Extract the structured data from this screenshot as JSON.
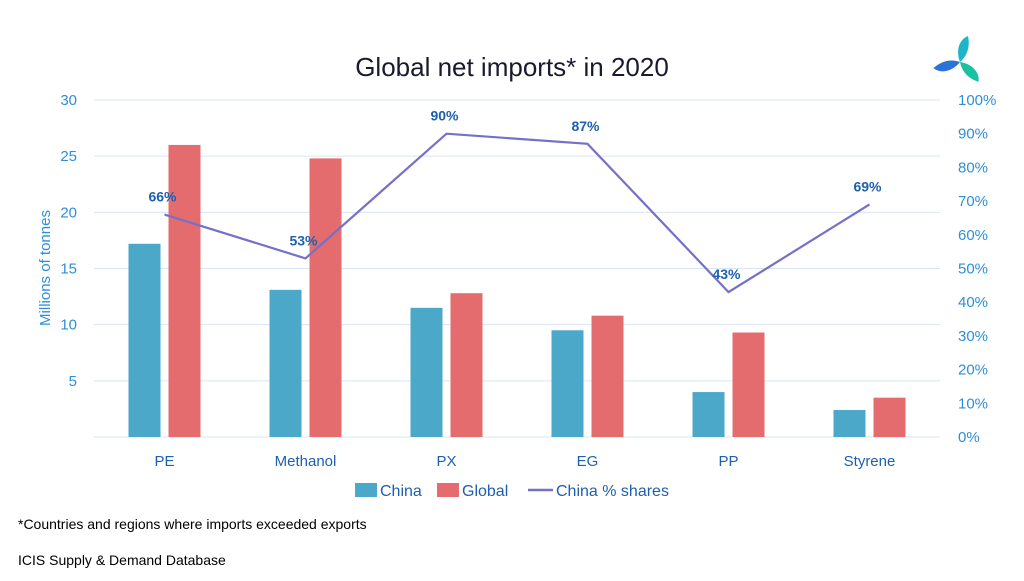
{
  "brand": {
    "logo_icon": "icis-propeller-logo-icon",
    "logo_colors": [
      "#1fb5c8",
      "#19c1a3",
      "#2a73d9"
    ]
  },
  "footnote": "*Countries and regions where imports exceeded exports",
  "source": "ICIS Supply & Demand Database",
  "chart_data": {
    "type": "bar",
    "title": "Global net imports* in 2020",
    "xlabel": "",
    "ylabel": "Millions of tonnes",
    "y2label": "",
    "categories": [
      "PE",
      "Methanol",
      "PX",
      "EG",
      "PP",
      "Styrene"
    ],
    "ylim": [
      0,
      30
    ],
    "yticks": [
      5,
      10,
      15,
      20,
      25,
      30
    ],
    "y2lim": [
      0,
      100
    ],
    "y2ticks": [
      0,
      10,
      20,
      30,
      40,
      50,
      60,
      70,
      80,
      90,
      100
    ],
    "y2tick_suffix": "%",
    "grid": true,
    "legend_position": "bottom",
    "colors": {
      "china": "#4ba8c8",
      "global": "#e46c6e",
      "line": "#7570c8",
      "axis_text": "#2e8fd6",
      "label_text": "#1f5fae",
      "grid": "#d9e5f2",
      "title": "#1a1a2e"
    },
    "series": [
      {
        "name": "China",
        "kind": "bar",
        "axis": "left",
        "values": [
          17.2,
          13.1,
          11.5,
          9.5,
          4.0,
          2.4
        ]
      },
      {
        "name": "Global",
        "kind": "bar",
        "axis": "left",
        "values": [
          26.0,
          24.8,
          12.8,
          10.8,
          9.3,
          3.5
        ]
      },
      {
        "name": "China % shares",
        "kind": "line",
        "axis": "right",
        "values": [
          66,
          53,
          90,
          87,
          43,
          69
        ],
        "labels": [
          "66%",
          "53%",
          "90%",
          "87%",
          "43%",
          "69%"
        ]
      }
    ]
  }
}
